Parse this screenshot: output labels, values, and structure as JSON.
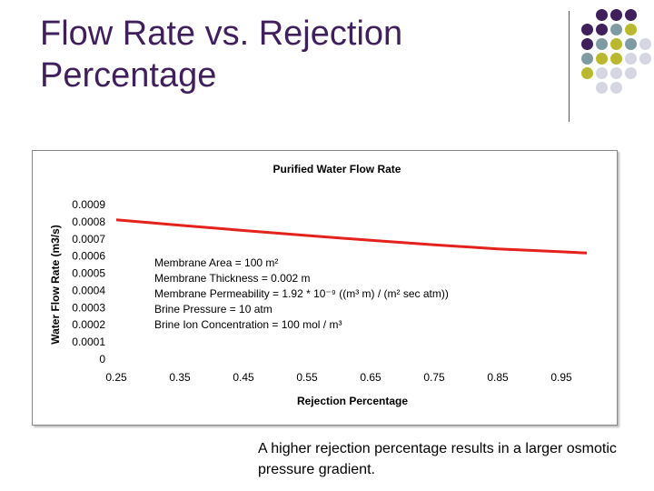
{
  "slide": {
    "title": "Flow Rate vs. Rejection Percentage",
    "note": "A higher rejection percentage results in a larger osmotic pressure gradient."
  },
  "decoration": {
    "colors": [
      "#3f1f5c",
      "#7f9ba1",
      "#b9b82e",
      "#d6d6e2"
    ]
  },
  "chart_data": {
    "type": "line",
    "title": "Purified Water Flow Rate",
    "xlabel": "Rejection Percentage",
    "ylabel": "Water Flow Rate (m3/s)",
    "xlim": [
      0.25,
      1.0
    ],
    "ylim": [
      0,
      0.0009
    ],
    "x_ticks": [
      "0.25",
      "0.35",
      "0.45",
      "0.55",
      "0.65",
      "0.75",
      "0.85",
      "0.95"
    ],
    "y_ticks": [
      "0",
      "0.0001",
      "0.0002",
      "0.0003",
      "0.0004",
      "0.0005",
      "0.0006",
      "0.0007",
      "0.0008",
      "0.0009"
    ],
    "grid": false,
    "line_color": "#e3221c",
    "series": [
      {
        "x": [
          0.25,
          0.35,
          0.45,
          0.55,
          0.65,
          0.75,
          0.85,
          0.95,
          0.99
        ],
        "y": [
          0.000811,
          0.00078,
          0.000749,
          0.00072,
          0.000692,
          0.000666,
          0.000642,
          0.000625,
          0.000618
        ]
      }
    ],
    "annotation_lines": [
      "Membrane Area = 100 m²",
      "Membrane Thickness = 0.002 m",
      "Membrane Permeability = 1.92 * 10⁻⁹ ((m³ m) / (m² sec atm))",
      "Brine Pressure = 10 atm",
      "Brine Ion Concentration = 100 mol / m³"
    ]
  }
}
